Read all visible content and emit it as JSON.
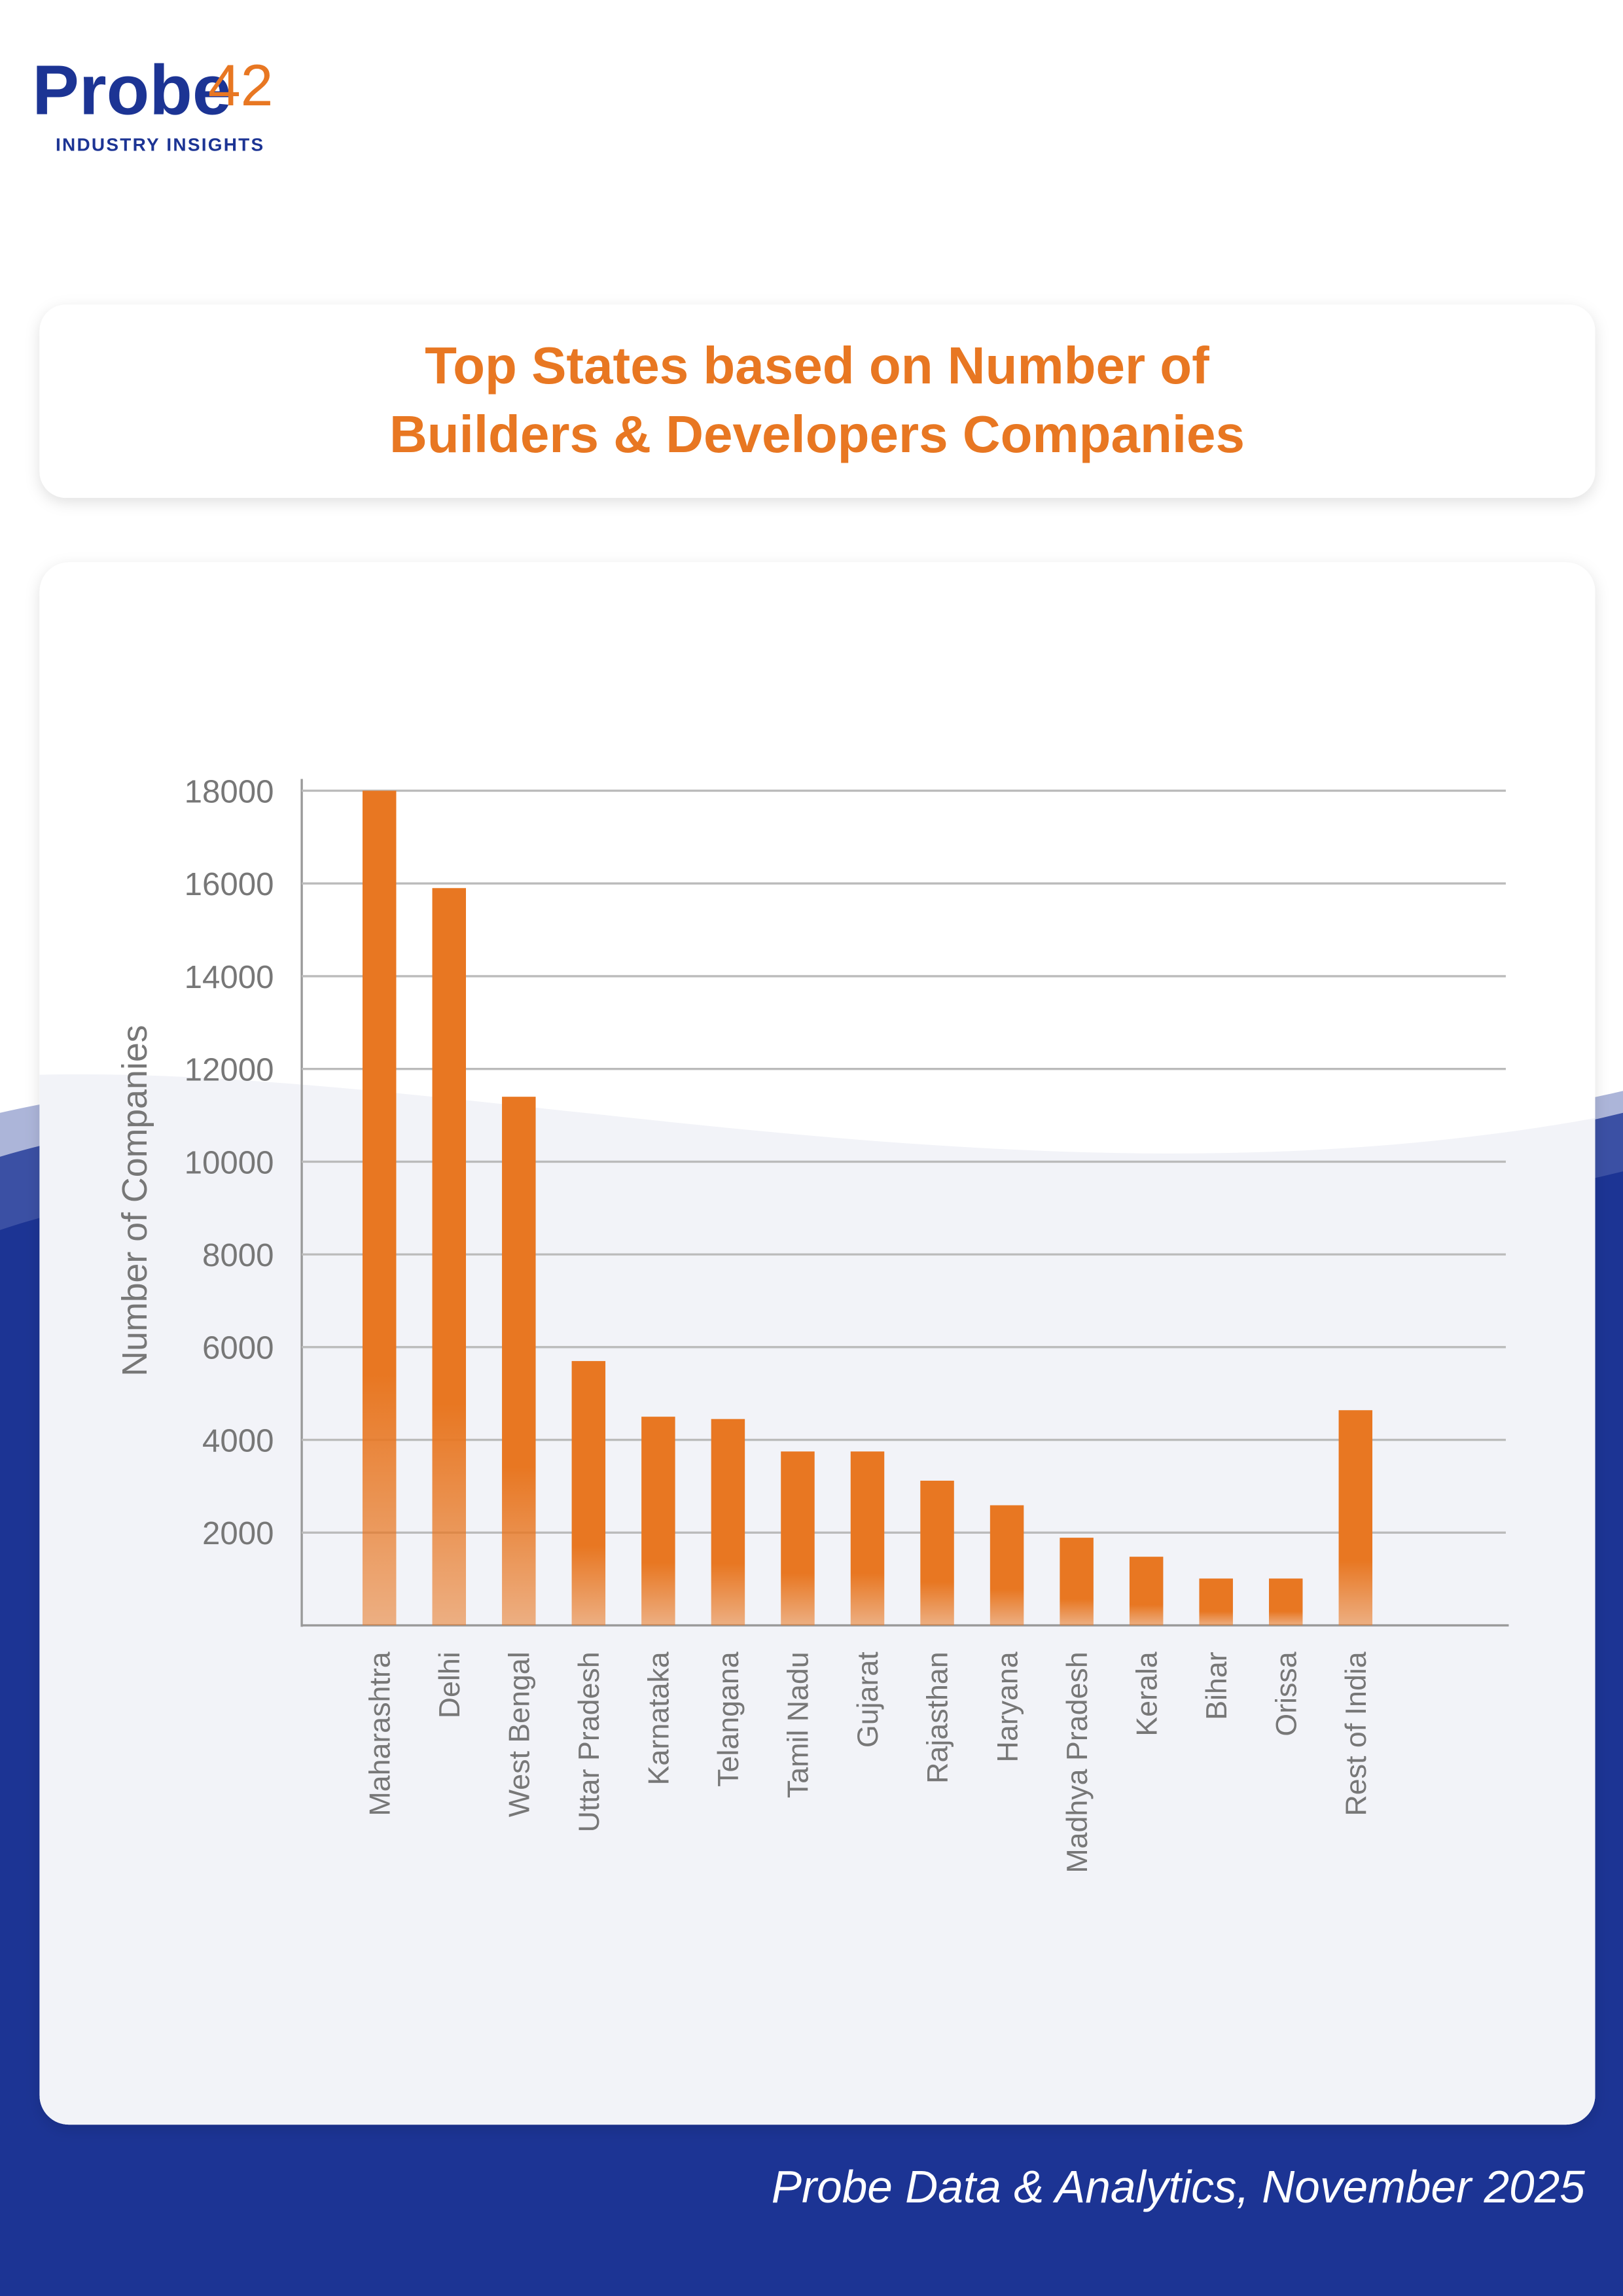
{
  "logo": {
    "name": "Probe",
    "number": "42",
    "tagline": "INDUSTRY INSIGHTS"
  },
  "chart_data": {
    "type": "bar",
    "title": "Top States based on Number of Builders & Developers Companies",
    "y_label": "Number of Companies",
    "categories": [
      "Maharashtra",
      "Delhi",
      "West Bengal",
      "Uttar Pradesh",
      "Karnataka",
      "Telangana",
      "Tamil Nadu",
      "Gujarat",
      "Rajasthan",
      "Haryana",
      "Madhya Pradesh",
      "Kerala",
      "Bihar",
      "Orissa",
      "Rest of India"
    ],
    "values": [
      18000,
      15900,
      11400,
      5700,
      4500,
      4450,
      3750,
      3750,
      3120,
      2590,
      1890,
      1480,
      1010,
      1010,
      4640
    ],
    "color": "#e87722",
    "ylim": [
      0,
      18000
    ],
    "yticks": [
      2000,
      4000,
      6000,
      8000,
      10000,
      12000,
      14000,
      16000,
      18000
    ],
    "grid": true
  },
  "footer": "Probe Data & Analytics, November 2025"
}
